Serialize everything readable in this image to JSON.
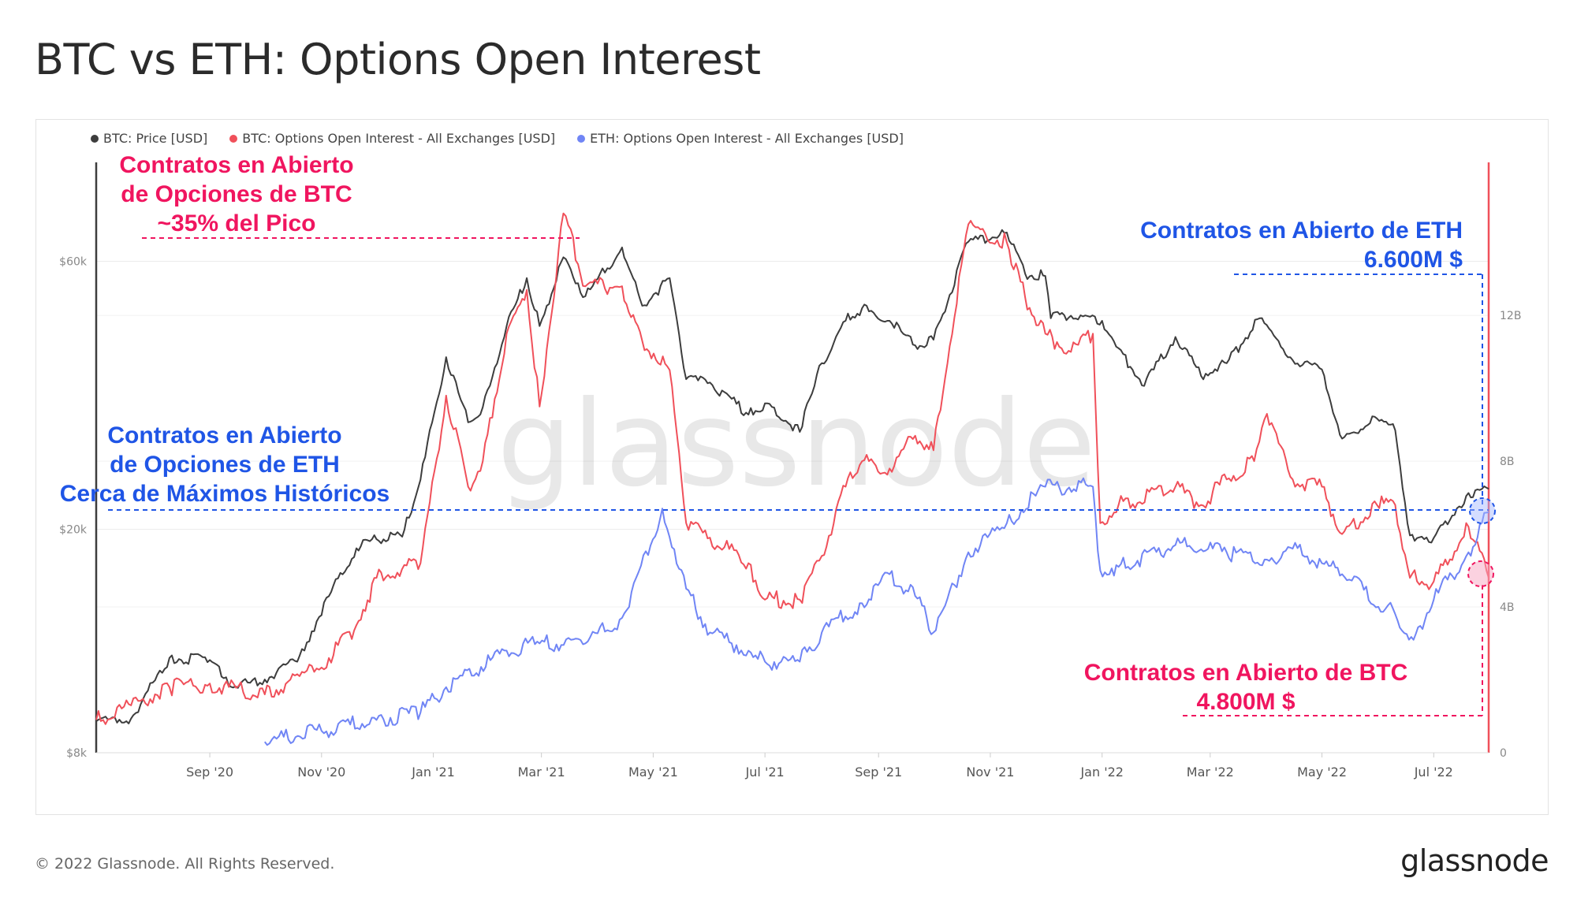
{
  "header": {
    "title": "BTC vs ETH: Options Open Interest"
  },
  "legend": [
    {
      "label": "BTC: Price [USD]",
      "color": "#3d3d3d"
    },
    {
      "label": "BTC: Options Open Interest - All Exchanges [USD]",
      "color": "#f0505a"
    },
    {
      "label": "ETH: Options Open Interest - All Exchanges [USD]",
      "color": "#7085f5"
    }
  ],
  "watermark": "glassnode",
  "footer": {
    "copyright": "© 2022 Glassnode. All Rights Reserved.",
    "logo": "glassnode"
  },
  "annotations": {
    "btc_peak": [
      "Contratos en Abierto",
      "de Opciones de BTC",
      "~35% del Pico"
    ],
    "eth_ath": [
      "Contratos en Abierto",
      "de Opciones de ETH",
      "Cerca de Máximos Históricos"
    ],
    "eth_now": [
      "Contratos en Abierto de ETH",
      "6.600M $"
    ],
    "btc_now": [
      "Contratos en Abierto de BTC",
      "4.800M $"
    ]
  },
  "chart_data": {
    "type": "line",
    "x_ticks": [
      "Sep '20",
      "Nov '20",
      "Jan '21",
      "Mar '21",
      "May '21",
      "Jul '21",
      "Sep '21",
      "Nov '21",
      "Jan '22",
      "Mar '22",
      "May '22",
      "Jul '22"
    ],
    "x_range": [
      "2020-07-01",
      "2022-07-31"
    ],
    "y_left": {
      "label": "BTC: Price [USD]",
      "scale": "log",
      "ticks": [
        "$8k",
        "$20k",
        "$60k"
      ],
      "tick_values": [
        8000,
        20000,
        60000
      ],
      "range": [
        8000,
        90000
      ]
    },
    "y_right": {
      "ticks": [
        "0",
        "4B",
        "8B",
        "12B"
      ],
      "tick_values": [
        0,
        4,
        8,
        12
      ],
      "unit": "B USD",
      "range": [
        0,
        16.2
      ]
    },
    "grid": true,
    "legend_position": "top-left",
    "series": [
      {
        "name": "BTC: Price [USD]",
        "color": "#3d3d3d",
        "axis": "left",
        "x": [
          "2020-07-01",
          "2020-07-20",
          "2020-08-10",
          "2020-09-01",
          "2020-09-15",
          "2020-10-01",
          "2020-10-20",
          "2020-11-05",
          "2020-11-20",
          "2020-12-01",
          "2020-12-15",
          "2020-12-25",
          "2021-01-08",
          "2021-01-20",
          "2021-01-28",
          "2021-02-10",
          "2021-02-21",
          "2021-02-28",
          "2021-03-13",
          "2021-03-25",
          "2021-04-14",
          "2021-04-25",
          "2021-05-10",
          "2021-05-19",
          "2021-06-01",
          "2021-06-22",
          "2021-07-01",
          "2021-07-20",
          "2021-08-01",
          "2021-08-14",
          "2021-08-23",
          "2021-09-07",
          "2021-09-21",
          "2021-10-01",
          "2021-10-20",
          "2021-11-10",
          "2021-11-20",
          "2021-12-01",
          "2021-12-04",
          "2021-12-15",
          "2022-01-01",
          "2022-01-10",
          "2022-01-24",
          "2022-02-10",
          "2022-02-24",
          "2022-03-10",
          "2022-03-28",
          "2022-04-15",
          "2022-05-01",
          "2022-05-12",
          "2022-05-31",
          "2022-06-10",
          "2022-06-18",
          "2022-07-01",
          "2022-07-20",
          "2022-07-31"
        ],
        "values": [
          9100,
          9200,
          11800,
          11700,
          10500,
          10800,
          11900,
          15200,
          18500,
          19200,
          19400,
          24500,
          40500,
          31000,
          33000,
          46000,
          56000,
          46000,
          61000,
          52000,
          63500,
          50000,
          56000,
          37000,
          36500,
          32000,
          33500,
          29800,
          39500,
          47000,
          49500,
          47000,
          42500,
          43500,
          65000,
          67500,
          57000,
          56500,
          47500,
          48000,
          47000,
          42000,
          36000,
          44000,
          37500,
          39500,
          47500,
          40000,
          38500,
          29000,
          31500,
          30000,
          19500,
          19300,
          23200,
          23600
        ]
      },
      {
        "name": "BTC: Options Open Interest - All Exchanges [USD]",
        "color": "#f0505a",
        "axis": "right",
        "x": [
          "2020-07-01",
          "2020-07-20",
          "2020-08-10",
          "2020-09-01",
          "2020-10-01",
          "2020-10-20",
          "2020-11-05",
          "2020-11-20",
          "2020-12-01",
          "2020-12-25",
          "2021-01-08",
          "2021-01-20",
          "2021-01-28",
          "2021-02-10",
          "2021-02-21",
          "2021-02-28",
          "2021-03-13",
          "2021-03-25",
          "2021-04-14",
          "2021-04-25",
          "2021-05-10",
          "2021-05-19",
          "2021-06-01",
          "2021-06-22",
          "2021-07-01",
          "2021-07-20",
          "2021-08-01",
          "2021-08-14",
          "2021-08-23",
          "2021-09-07",
          "2021-09-21",
          "2021-10-01",
          "2021-10-20",
          "2021-11-10",
          "2021-11-20",
          "2021-12-01",
          "2021-12-15",
          "2021-12-27",
          "2021-12-31",
          "2022-01-10",
          "2022-02-10",
          "2022-02-24",
          "2022-03-10",
          "2022-03-25",
          "2022-04-01",
          "2022-04-15",
          "2022-05-01",
          "2022-05-12",
          "2022-05-31",
          "2022-06-10",
          "2022-06-18",
          "2022-07-01",
          "2022-07-20",
          "2022-07-31"
        ],
        "values": [
          0.9,
          1.3,
          1.8,
          1.9,
          1.6,
          2.1,
          2.6,
          3.5,
          4.8,
          5.2,
          9.8,
          7.3,
          8.0,
          11.5,
          12.7,
          9.5,
          14.8,
          12.8,
          12.8,
          11.3,
          10.5,
          6.3,
          5.9,
          5.2,
          4.2,
          4.2,
          5.4,
          7.3,
          8.0,
          7.8,
          8.7,
          8.3,
          14.5,
          14.0,
          12.5,
          11.5,
          11.0,
          11.5,
          6.3,
          6.8,
          7.3,
          6.8,
          7.5,
          8.0,
          9.3,
          7.5,
          7.3,
          6.0,
          6.8,
          6.8,
          4.8,
          4.7,
          6.2,
          4.8
        ]
      },
      {
        "name": "ETH: Options Open Interest - All Exchanges [USD]",
        "color": "#7085f5",
        "axis": "right",
        "x": [
          "2020-10-01",
          "2020-11-01",
          "2020-12-01",
          "2020-12-25",
          "2021-01-08",
          "2021-02-10",
          "2021-02-28",
          "2021-03-25",
          "2021-04-14",
          "2021-05-06",
          "2021-05-19",
          "2021-06-01",
          "2021-06-22",
          "2021-07-01",
          "2021-07-20",
          "2021-08-01",
          "2021-08-23",
          "2021-09-07",
          "2021-09-21",
          "2021-10-01",
          "2021-10-20",
          "2021-11-10",
          "2021-12-01",
          "2021-12-27",
          "2021-12-31",
          "2022-01-10",
          "2022-02-10",
          "2022-03-10",
          "2022-04-01",
          "2022-04-15",
          "2022-05-01",
          "2022-05-12",
          "2022-06-10",
          "2022-06-20",
          "2022-07-01",
          "2022-07-20",
          "2022-07-31"
        ],
        "values": [
          0.3,
          0.6,
          0.9,
          1.1,
          1.8,
          2.8,
          3.0,
          3.0,
          3.7,
          6.7,
          4.5,
          3.3,
          2.8,
          2.5,
          2.5,
          3.3,
          4.1,
          4.9,
          4.3,
          3.3,
          5.5,
          6.3,
          7.3,
          7.3,
          5.0,
          5.1,
          5.7,
          5.5,
          5.3,
          5.6,
          5.2,
          4.9,
          3.8,
          3.1,
          4.2,
          5.5,
          6.6
        ]
      }
    ]
  }
}
